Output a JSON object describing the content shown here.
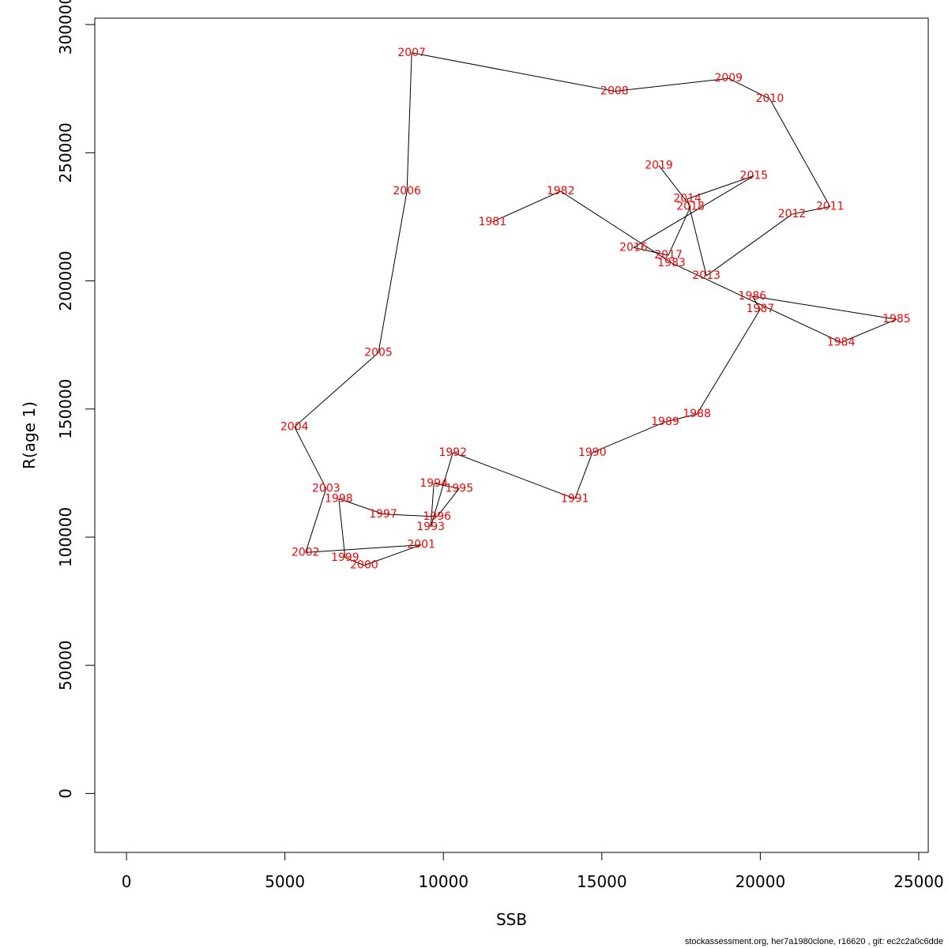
{
  "chart_data": {
    "type": "line",
    "title": "",
    "xlabel": "SSB",
    "ylabel": "R(age 1)",
    "xlim": [
      -1000,
      25300
    ],
    "ylim": [
      -23000,
      302500
    ],
    "x_ticks": [
      {
        "value": 0,
        "label": "0"
      },
      {
        "value": 5000,
        "label": "5000"
      },
      {
        "value": 10000,
        "label": "10000"
      },
      {
        "value": 15000,
        "label": "15000"
      },
      {
        "value": 20000,
        "label": "20000"
      },
      {
        "value": 25000,
        "label": "25000"
      }
    ],
    "y_ticks": [
      {
        "value": 0,
        "label": "0"
      },
      {
        "value": 50000,
        "label": "50000"
      },
      {
        "value": 100000,
        "label": "100000"
      },
      {
        "value": 150000,
        "label": "150000"
      },
      {
        "value": 200000,
        "label": "200000"
      },
      {
        "value": 250000,
        "label": "250000"
      },
      {
        "value": 300000,
        "label": "300000"
      }
    ],
    "line_color": "#000000",
    "label_color": "#ff0000",
    "grid": false,
    "legend": "none",
    "points": [
      {
        "year": "1981",
        "ssb": 11550,
        "recruits": 223000
      },
      {
        "year": "1982",
        "ssb": 13700,
        "recruits": 235000
      },
      {
        "year": "1983",
        "ssb": 17200,
        "recruits": 207000
      },
      {
        "year": "1984",
        "ssb": 22550,
        "recruits": 176000
      },
      {
        "year": "1985",
        "ssb": 24300,
        "recruits": 185000
      },
      {
        "year": "1986",
        "ssb": 19750,
        "recruits": 194000
      },
      {
        "year": "1987",
        "ssb": 20000,
        "recruits": 189000
      },
      {
        "year": "1988",
        "ssb": 18000,
        "recruits": 148000
      },
      {
        "year": "1989",
        "ssb": 17000,
        "recruits": 145000
      },
      {
        "year": "1990",
        "ssb": 14700,
        "recruits": 133000
      },
      {
        "year": "1991",
        "ssb": 14150,
        "recruits": 115000
      },
      {
        "year": "1992",
        "ssb": 10300,
        "recruits": 133000
      },
      {
        "year": "1993",
        "ssb": 9600,
        "recruits": 104000
      },
      {
        "year": "1994",
        "ssb": 9700,
        "recruits": 121000
      },
      {
        "year": "1995",
        "ssb": 10500,
        "recruits": 119000
      },
      {
        "year": "1996",
        "ssb": 9800,
        "recruits": 108000
      },
      {
        "year": "1997",
        "ssb": 8100,
        "recruits": 109000
      },
      {
        "year": "1998",
        "ssb": 6700,
        "recruits": 115000
      },
      {
        "year": "1999",
        "ssb": 6900,
        "recruits": 92000
      },
      {
        "year": "2000",
        "ssb": 7500,
        "recruits": 89000
      },
      {
        "year": "2001",
        "ssb": 9300,
        "recruits": 97000
      },
      {
        "year": "2002",
        "ssb": 5650,
        "recruits": 94000
      },
      {
        "year": "2003",
        "ssb": 6300,
        "recruits": 119000
      },
      {
        "year": "2004",
        "ssb": 5300,
        "recruits": 143000
      },
      {
        "year": "2005",
        "ssb": 7950,
        "recruits": 172000
      },
      {
        "year": "2006",
        "ssb": 8850,
        "recruits": 235000
      },
      {
        "year": "2007",
        "ssb": 9000,
        "recruits": 289000
      },
      {
        "year": "2008",
        "ssb": 15400,
        "recruits": 274000
      },
      {
        "year": "2009",
        "ssb": 19000,
        "recruits": 279000
      },
      {
        "year": "2010",
        "ssb": 20300,
        "recruits": 271000
      },
      {
        "year": "2011",
        "ssb": 22200,
        "recruits": 229000
      },
      {
        "year": "2012",
        "ssb": 21000,
        "recruits": 226000
      },
      {
        "year": "2013",
        "ssb": 18300,
        "recruits": 202000
      },
      {
        "year": "2014",
        "ssb": 17700,
        "recruits": 232000
      },
      {
        "year": "2015",
        "ssb": 19800,
        "recruits": 241000
      },
      {
        "year": "2016",
        "ssb": 16000,
        "recruits": 213000
      },
      {
        "year": "2017",
        "ssb": 17100,
        "recruits": 210000
      },
      {
        "year": "2018",
        "ssb": 17800,
        "recruits": 229000
      },
      {
        "year": "2019",
        "ssb": 16800,
        "recruits": 245000
      }
    ]
  },
  "footer": {
    "note": "stockassessment.org, her7a1980clone, r16620 , git: ec2c2a0c6dde"
  }
}
